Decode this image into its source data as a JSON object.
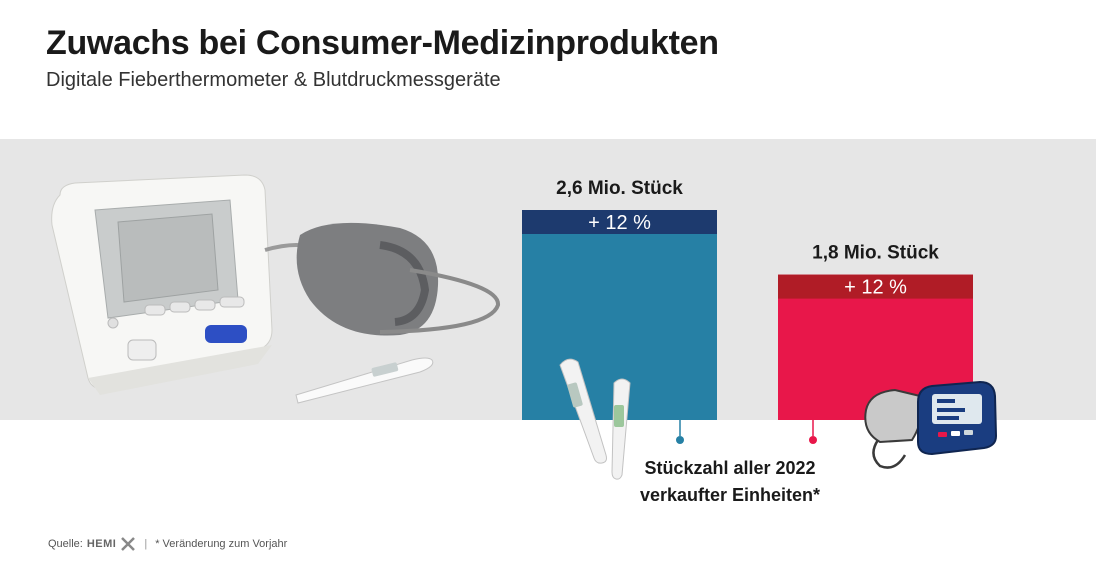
{
  "title": "Zuwachs bei Consumer-Medizinprodukten",
  "subtitle": "Digitale Fieberthermometer & Blutdruckmessgeräte",
  "chart_data": {
    "type": "bar",
    "categories": [
      "Digitale Fieberthermometer",
      "Blutdruckmessgeräte"
    ],
    "values": [
      2.6,
      1.8
    ],
    "unit": "Mio. Stück",
    "value_labels": [
      "2,6 Mio. Stück",
      "1,8 Mio. Stück"
    ],
    "change_labels": [
      "+ 12 %",
      "+ 12 %"
    ],
    "change_pct": [
      12,
      12
    ],
    "colors": [
      "#2680a5",
      "#e8174a"
    ],
    "cap_colors": [
      "#1d3a6e",
      "#b01c26"
    ],
    "ylim": [
      0,
      2.6
    ],
    "annotation": [
      "Stückzahl aller 2022",
      "verkaufter Einheiten*"
    ]
  },
  "footer": {
    "source_label": "Quelle:",
    "source_brand": "HEMI",
    "note": "* Veränderung zum Vorjahr"
  }
}
